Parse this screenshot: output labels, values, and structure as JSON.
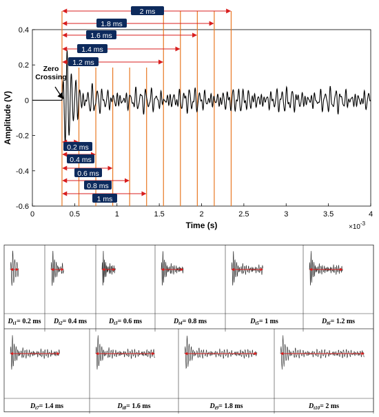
{
  "chart_data": {
    "type": "line",
    "xlabel": "Time (s)",
    "ylabel": "Amplitude (V)",
    "x_multiplier": "×10",
    "x_multiplier_exp": "-3",
    "xlim": [
      0,
      4
    ],
    "ylim": [
      -0.6,
      0.4
    ],
    "x_ticks": [
      "0",
      "0.5",
      "1",
      "1.5",
      "2",
      "2.5",
      "3",
      "3.5",
      "4"
    ],
    "y_ticks": [
      "-0.6",
      "-0.4",
      "-0.2",
      "0",
      "0.2",
      "0.4"
    ],
    "annotation": "Zero Crossing",
    "zero_crossing_x": 0.35,
    "signal_color": "#000000",
    "marker_color": "#e87722",
    "window_arrow_color": "#d81e1e",
    "label_bg_color": "#0d2a5c",
    "window_markers_x": [
      0.55,
      0.75,
      0.95,
      1.15,
      1.35,
      1.55,
      1.75,
      1.95,
      2.15,
      2.35
    ],
    "top_windows": [
      {
        "label": "2 ms",
        "end_x": 2.35
      },
      {
        "label": "1.8 ms",
        "end_x": 2.15
      },
      {
        "label": "1.6 ms",
        "end_x": 1.95
      },
      {
        "label": "1.4 ms",
        "end_x": 1.75
      },
      {
        "label": "1.2 ms",
        "end_x": 1.55
      }
    ],
    "bottom_windows": [
      {
        "label": "0.2 ms",
        "end_x": 0.55
      },
      {
        "label": "0.4 ms",
        "end_x": 0.75
      },
      {
        "label": "0.6 ms",
        "end_x": 0.95
      },
      {
        "label": "0.8 ms",
        "end_x": 1.15
      },
      {
        "label": "1 ms",
        "end_x": 1.35
      }
    ]
  },
  "window_grid": {
    "row1": [
      {
        "var": "D",
        "sub": "t1",
        "value": "= 0.2 ms",
        "span": 0.2
      },
      {
        "var": "D",
        "sub": "t2",
        "value": "= 0.4 ms",
        "span": 0.4
      },
      {
        "var": "D",
        "sub": "t3",
        "value": "= 0.6 ms",
        "span": 0.6
      },
      {
        "var": "D",
        "sub": "t4",
        "value": "= 0.8 ms",
        "span": 0.8
      },
      {
        "var": "D",
        "sub": "t5",
        "value": "= 1 ms",
        "span": 1.0
      },
      {
        "var": "D",
        "sub": "t6",
        "value": "= 1.2 ms",
        "span": 1.2
      }
    ],
    "row2": [
      {
        "var": "D",
        "sub": "t7",
        "value": "= 1.4 ms",
        "span": 1.4
      },
      {
        "var": "D",
        "sub": "t8",
        "value": "= 1.6 ms",
        "span": 1.6
      },
      {
        "var": "D",
        "sub": "t9",
        "value": "= 1.8 ms",
        "span": 1.8
      },
      {
        "var": "D",
        "sub": "t10",
        "value": "= 2 ms",
        "span": 2.0
      }
    ]
  }
}
